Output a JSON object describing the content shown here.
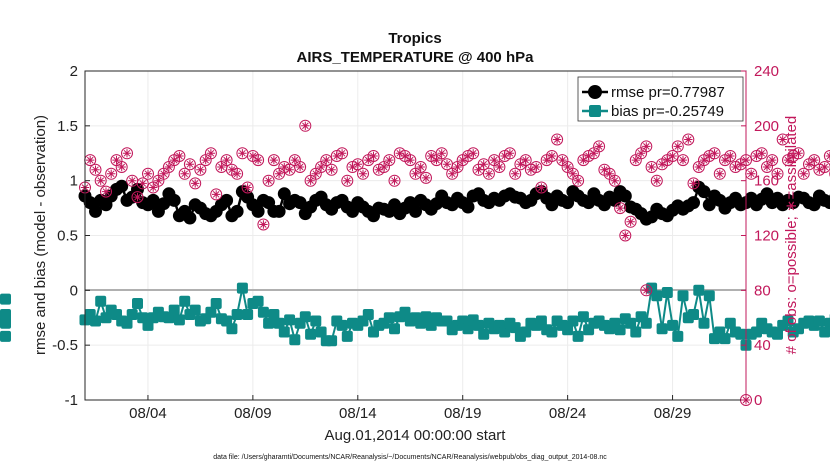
{
  "chart_data": {
    "type": "line",
    "title": "Tropics",
    "subtitle": "AIRS_TEMPERATURE @ 400 hPa",
    "xlabel": "Aug.01,2014 00:00:00 start",
    "ylabel": "rmse and bias (model - observation)",
    "ylabel_right": "# of obs: o=possible; ∗=assimilated",
    "footer": "data file: /Users/gharamti/Documents/NCAR/Reanalysis/~/Documents/NCAR/Reanalysis/webpub/obs_diag_output_2014-08.nc",
    "xlim": [
      1,
      32.5
    ],
    "ylim": [
      -1,
      2
    ],
    "ylim_right": [
      0,
      240
    ],
    "x_ticks": [
      {
        "x": 4,
        "label": "08/04"
      },
      {
        "x": 9,
        "label": "08/09"
      },
      {
        "x": 14,
        "label": "08/14"
      },
      {
        "x": 19,
        "label": "08/19"
      },
      {
        "x": 24,
        "label": "08/24"
      },
      {
        "x": 29,
        "label": "08/29"
      }
    ],
    "y_ticks": [
      {
        "v": -1,
        "label": "-1"
      },
      {
        "v": -0.5,
        "label": "-0.5"
      },
      {
        "v": 0,
        "label": "0"
      },
      {
        "v": 0.5,
        "label": "0.5"
      },
      {
        "v": 1,
        "label": "1"
      },
      {
        "v": 1.5,
        "label": "1.5"
      },
      {
        "v": 2,
        "label": "2"
      }
    ],
    "y_ticks_right": [
      {
        "v": 0,
        "label": "0"
      },
      {
        "v": 40,
        "label": "40"
      },
      {
        "v": 80,
        "label": "80"
      },
      {
        "v": 120,
        "label": "120"
      },
      {
        "v": 160,
        "label": "160"
      },
      {
        "v": 200,
        "label": "200"
      },
      {
        "v": 240,
        "label": "240"
      }
    ],
    "legend": [
      {
        "name": "rmse pr=0.77987",
        "color": "#000000",
        "marker": "circle"
      },
      {
        "name": "bias pr=-0.25749",
        "color": "#0e8a87",
        "marker": "square"
      }
    ],
    "legend_position": "top-right",
    "grid": true,
    "colors": {
      "rmse": "#000000",
      "bias": "#0e8a87",
      "obs": "#c2185b",
      "zero_line": "#b0b0b0"
    },
    "x_start": 1,
    "x_step": 0.25,
    "series": [
      {
        "name": "rmse",
        "axis": "left",
        "values": [
          0.86,
          0.8,
          0.72,
          0.82,
          0.78,
          0.86,
          0.92,
          0.95,
          0.82,
          0.85,
          0.92,
          0.8,
          0.78,
          0.82,
          0.72,
          0.79,
          0.88,
          0.82,
          0.68,
          0.72,
          0.66,
          0.78,
          0.75,
          0.7,
          0.68,
          0.72,
          0.78,
          0.82,
          0.68,
          0.72,
          0.9,
          0.85,
          0.78,
          0.72,
          0.82,
          0.8,
          0.72,
          0.72,
          0.88,
          0.79,
          0.82,
          0.8,
          0.7,
          0.76,
          0.82,
          0.85,
          0.78,
          0.74,
          0.8,
          0.82,
          0.76,
          0.72,
          0.8,
          0.76,
          0.72,
          0.68,
          0.75,
          0.74,
          0.72,
          0.78,
          0.7,
          0.75,
          0.8,
          0.72,
          0.82,
          0.78,
          0.74,
          0.79,
          0.86,
          0.8,
          0.78,
          0.84,
          0.8,
          0.76,
          0.86,
          0.88,
          0.82,
          0.8,
          0.84,
          0.82,
          0.86,
          0.88,
          0.85,
          0.84,
          0.8,
          0.82,
          0.88,
          0.9,
          0.84,
          0.78,
          0.86,
          0.82,
          0.8,
          0.9,
          0.86,
          0.82,
          0.8,
          0.88,
          0.82,
          0.78,
          0.85,
          0.82,
          0.9,
          0.86,
          0.76,
          0.74,
          0.7,
          0.65,
          0.67,
          0.74,
          0.7,
          0.68,
          0.73,
          0.77,
          0.74,
          0.77,
          0.8,
          0.94,
          0.9,
          0.78,
          0.86,
          0.82,
          0.75,
          0.8,
          0.84,
          0.78,
          0.8,
          0.84,
          0.78,
          0.83,
          0.88,
          0.8,
          0.84,
          0.78,
          0.82,
          0.8,
          0.85,
          0.84,
          0.8,
          0.78,
          0.86,
          0.82,
          0.8,
          0.84,
          0.78,
          0.8,
          0.86,
          0.68,
          0.62,
          0.68,
          0.78,
          0.84,
          0.8,
          0.86,
          0.82,
          0.8,
          0.78,
          0.84,
          0.82,
          0.78,
          0.84,
          0.8,
          0.82,
          0.78,
          0.84,
          0.8,
          0.86,
          0.82,
          0.78,
          0.74,
          0.7,
          0.88,
          0.8,
          0.86,
          0.82,
          0.78,
          0.76,
          0.8,
          0.82,
          0.76,
          0.8,
          0.84,
          0.78,
          0.79,
          0.78,
          0.82,
          0.82,
          0.86,
          0.84,
          0.82,
          0.84,
          0.8,
          0.85,
          0.88,
          0.78,
          0.84,
          0.86,
          0.88,
          0.8
        ]
      },
      {
        "name": "bias",
        "axis": "left",
        "values": [
          -0.27,
          -0.22,
          -0.28,
          -0.1,
          -0.25,
          -0.18,
          -0.22,
          -0.28,
          -0.3,
          -0.22,
          -0.12,
          -0.25,
          -0.32,
          -0.25,
          -0.2,
          -0.24,
          -0.25,
          -0.18,
          -0.27,
          -0.1,
          -0.22,
          -0.18,
          -0.28,
          -0.26,
          -0.2,
          -0.12,
          -0.26,
          -0.28,
          -0.35,
          -0.22,
          0.02,
          -0.22,
          -0.12,
          -0.1,
          -0.2,
          -0.3,
          -0.22,
          -0.3,
          -0.38,
          -0.27,
          -0.45,
          -0.3,
          -0.24,
          -0.4,
          -0.28,
          -0.38,
          -0.46,
          -0.46,
          -0.28,
          -0.32,
          -0.42,
          -0.3,
          -0.32,
          -0.28,
          -0.22,
          -0.38,
          -0.32,
          -0.3,
          -0.25,
          -0.35,
          -0.24,
          -0.2,
          -0.28,
          -0.25,
          -0.3,
          -0.24,
          -0.32,
          -0.25,
          -0.28,
          -0.28,
          -0.36,
          -0.32,
          -0.28,
          -0.35,
          -0.27,
          -0.32,
          -0.4,
          -0.3,
          -0.35,
          -0.32,
          -0.38,
          -0.3,
          -0.34,
          -0.42,
          -0.38,
          -0.3,
          -0.32,
          -0.28,
          -0.36,
          -0.38,
          -0.28,
          -0.32,
          -0.36,
          -0.28,
          -0.42,
          -0.24,
          -0.36,
          -0.3,
          -0.28,
          -0.32,
          -0.35,
          -0.3,
          -0.36,
          -0.26,
          -0.3,
          -0.38,
          -0.24,
          -0.3,
          0.02,
          -0.05,
          -0.35,
          -0.02,
          -0.32,
          -0.42,
          -0.05,
          -0.25,
          -0.22,
          0.0,
          -0.3,
          -0.05,
          -0.44,
          -0.38,
          -0.44,
          -0.3,
          -0.38,
          -0.4,
          -0.5,
          -0.4,
          -0.38,
          -0.3,
          -0.35,
          -0.38,
          -0.4,
          -0.32,
          -0.28,
          -0.38,
          -0.35,
          -0.3,
          -0.28,
          -0.32,
          -0.28,
          -0.38,
          -0.3,
          -0.26,
          -0.32,
          -0.22,
          -0.28,
          -0.24,
          -0.26,
          -0.12,
          -0.2,
          -0.28,
          -0.14,
          -0.2,
          -0.1,
          -0.22,
          -0.1,
          -0.38,
          -0.3,
          -0.45,
          -0.25,
          -0.35,
          -0.28,
          -0.38,
          -0.3,
          -0.28,
          -0.22,
          -0.3,
          -0.25,
          -0.28,
          -0.22,
          -0.2,
          -0.3,
          -0.15,
          -0.25,
          -0.2,
          -0.28,
          -0.22,
          -0.12,
          -0.28,
          -0.18,
          -0.22,
          -0.28,
          -0.3,
          -0.24,
          -0.3,
          -0.2,
          -0.22,
          -0.25,
          -0.1,
          -0.2,
          -0.3,
          -0.22,
          -0.25,
          -0.28,
          -0.18,
          -0.3,
          -0.22,
          -0.2,
          -0.25,
          -0.08,
          -0.3,
          -0.42,
          -0.22
        ]
      },
      {
        "name": "obs_possible",
        "axis": "right",
        "values": [
          155,
          175,
          168,
          160,
          152,
          165,
          175,
          170,
          180,
          160,
          148,
          158,
          165,
          155,
          160,
          165,
          170,
          175,
          178,
          165,
          172,
          158,
          168,
          175,
          180,
          150,
          170,
          175,
          168,
          165,
          180,
          155,
          178,
          175,
          128,
          160,
          175,
          165,
          170,
          168,
          175,
          170,
          200,
          160,
          165,
          170,
          175,
          168,
          178,
          180,
          160,
          170,
          172,
          165,
          175,
          178,
          168,
          170,
          175,
          160,
          180,
          178,
          175,
          165,
          170,
          162,
          178,
          175,
          180,
          172,
          165,
          170,
          175,
          178,
          180,
          168,
          172,
          165,
          175,
          170,
          178,
          180,
          165,
          172,
          175,
          168,
          170,
          155,
          175,
          178,
          190,
          175,
          170,
          165,
          160,
          175,
          178,
          180,
          185,
          168,
          165,
          160,
          140,
          120,
          130,
          175,
          180,
          185,
          170,
          160,
          172,
          175,
          178,
          185,
          175,
          190,
          158,
          170,
          175,
          178,
          180,
          165,
          175,
          178,
          170,
          172,
          175,
          165,
          178,
          180,
          170,
          175,
          165,
          190,
          175,
          178,
          180,
          165,
          172,
          175,
          168,
          170,
          178,
          165,
          175,
          180,
          165,
          172,
          175,
          178,
          170,
          155,
          168,
          175,
          178,
          170,
          158,
          165,
          175,
          168,
          170,
          178,
          165,
          175,
          180,
          155,
          168,
          175,
          178,
          170,
          160,
          165,
          175,
          180,
          168,
          172,
          175,
          178,
          165,
          170,
          182,
          175,
          178,
          165,
          170,
          175,
          178,
          168,
          195,
          172,
          160,
          165
        ]
      },
      {
        "name": "obs_assimilated",
        "axis": "right",
        "values": [
          155,
          175,
          168,
          160,
          152,
          165,
          175,
          170,
          180,
          160,
          148,
          158,
          165,
          155,
          160,
          165,
          170,
          175,
          178,
          165,
          172,
          158,
          168,
          175,
          180,
          150,
          170,
          175,
          168,
          165,
          180,
          155,
          178,
          175,
          128,
          160,
          175,
          165,
          170,
          168,
          175,
          170,
          200,
          160,
          165,
          170,
          175,
          168,
          178,
          180,
          160,
          170,
          172,
          165,
          175,
          178,
          168,
          170,
          175,
          160,
          180,
          178,
          175,
          165,
          170,
          162,
          178,
          175,
          180,
          172,
          165,
          170,
          175,
          178,
          180,
          168,
          172,
          165,
          175,
          170,
          178,
          180,
          165,
          172,
          175,
          168,
          170,
          155,
          175,
          178,
          190,
          175,
          170,
          165,
          160,
          175,
          178,
          180,
          185,
          168,
          165,
          160,
          140,
          120,
          130,
          175,
          180,
          185,
          170,
          160,
          172,
          175,
          178,
          185,
          175,
          190,
          158,
          170,
          175,
          178,
          180,
          165,
          175,
          178,
          170,
          172,
          175,
          165,
          178,
          180,
          170,
          175,
          165,
          190,
          175,
          178,
          180,
          165,
          172,
          175,
          168,
          170,
          178,
          165,
          175,
          180,
          165,
          172,
          175,
          178,
          170,
          155,
          168,
          175,
          178,
          170,
          158,
          165,
          175,
          168,
          170,
          178,
          165,
          175,
          180,
          155,
          168,
          175,
          178,
          170,
          160,
          165,
          175,
          180,
          168,
          172,
          175,
          178,
          165,
          170,
          182,
          175,
          178,
          165,
          170,
          175,
          178,
          168,
          195,
          172,
          160,
          165
        ]
      },
      {
        "name": "obs_extra",
        "axis": "right",
        "values": [
          80,
          0
        ]
      }
    ],
    "extra_obs_x": [
      27.75,
      32.5
    ]
  }
}
